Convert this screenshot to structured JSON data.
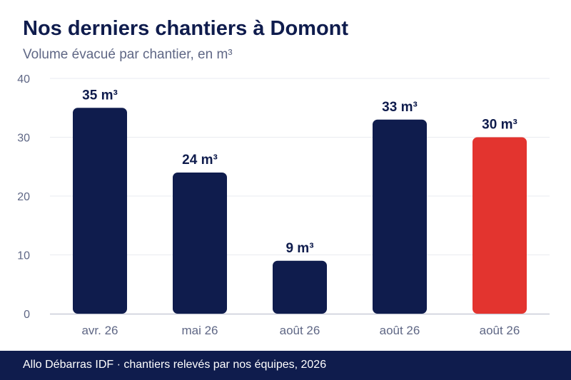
{
  "title": "Nos derniers chantiers à Domont",
  "subtitle": "Volume évacué par chantier, en m³",
  "footer": "Allo Débarras IDF · chantiers relevés par nos équipes, 2026",
  "colors": {
    "bar": "#0f1c4d",
    "highlight": "#e3342f",
    "grid": "#e9ebf0",
    "axis_text": "#5f6785",
    "baseline": "#c9ccd8",
    "label": "#0f1c4d"
  },
  "chart_data": {
    "type": "bar",
    "categories": [
      "avr. 26",
      "mai 26",
      "août 26",
      "août 26",
      "août 26"
    ],
    "values": [
      35,
      24,
      9,
      33,
      30
    ],
    "data_labels": [
      "35 m³",
      "24 m³",
      "9 m³",
      "33 m³",
      "30 m³"
    ],
    "highlight_index": 4,
    "ylim": [
      0,
      40
    ],
    "yticks": [
      0,
      10,
      20,
      30,
      40
    ],
    "grid": true,
    "xlabel": "",
    "ylabel": ""
  }
}
